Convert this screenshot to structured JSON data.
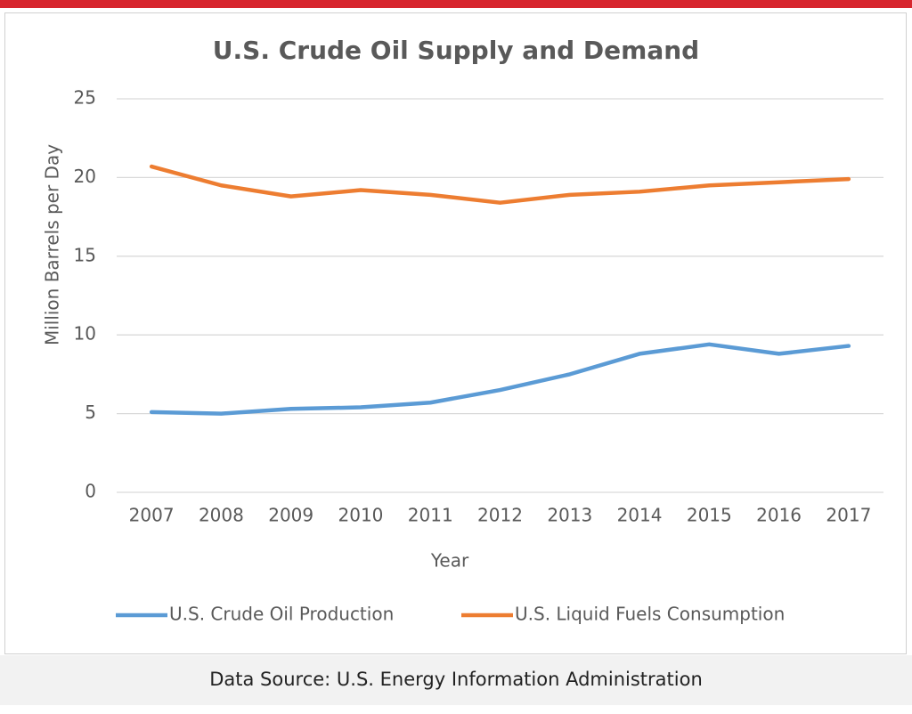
{
  "chart_data": {
    "type": "line",
    "title": "U.S. Crude Oil Supply and Demand",
    "x_label": "Year",
    "y_label": "Million Barrels per Day",
    "categories": [
      "2007",
      "2008",
      "2009",
      "2010",
      "2011",
      "2012",
      "2013",
      "2014",
      "2015",
      "2016",
      "2017"
    ],
    "series": [
      {
        "name": "U.S. Crude Oil Production",
        "color": "#5b9bd5",
        "values": [
          5.1,
          5.0,
          5.3,
          5.4,
          5.7,
          6.5,
          7.5,
          8.8,
          9.4,
          8.8,
          9.3
        ]
      },
      {
        "name": "U.S. Liquid Fuels Consumption",
        "color": "#ed7d31",
        "values": [
          20.7,
          19.5,
          18.8,
          19.2,
          18.9,
          18.4,
          18.9,
          19.1,
          19.5,
          19.7,
          19.9
        ]
      }
    ],
    "ylim": [
      0,
      25
    ],
    "yticks": [
      0,
      5,
      10,
      15,
      20,
      25
    ],
    "grid": true,
    "legend": "bottom"
  },
  "source": "Data Source: U.S. Energy Information Administration"
}
